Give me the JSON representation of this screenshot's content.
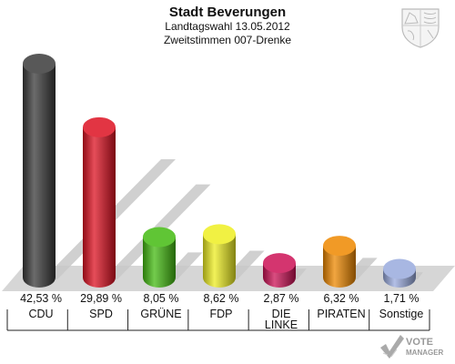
{
  "header": {
    "title": "Stadt Beverungen",
    "subtitle1": "Landtagswahl 13.05.2012",
    "subtitle2": "Zweitstimmen 007-Drenke"
  },
  "branding": {
    "crest_icon": "nrw-coat-of-arms-icon",
    "logo_line1": "VOTE",
    "logo_line2": "MANAGER"
  },
  "chart_data": {
    "type": "bar",
    "title": "Stadt Beverungen",
    "subtitle": "Landtagswahl 13.05.2012 / Zweitstimmen 007-Drenke",
    "categories": [
      "CDU",
      "SPD",
      "GRÜNE",
      "FDP",
      "DIE LINKE",
      "PIRATEN",
      "Sonstige"
    ],
    "category_lines": [
      [
        "CDU"
      ],
      [
        "SPD"
      ],
      [
        "GRÜNE"
      ],
      [
        "FDP"
      ],
      [
        "DIE",
        "LINKE"
      ],
      [
        "PIRATEN"
      ],
      [
        "Sonstige"
      ]
    ],
    "values": [
      42.53,
      29.89,
      8.05,
      8.62,
      2.87,
      6.32,
      1.71
    ],
    "value_labels": [
      "42,53 %",
      "29,89 %",
      "8,05 %",
      "8,62 %",
      "2,87 %",
      "6,32 %",
      "1,71 %"
    ],
    "colors": [
      "#3a3a3a",
      "#dd1122",
      "#44bb11",
      "#eeee22",
      "#cc1155",
      "#ee8800",
      "#99aadd"
    ],
    "ylim": [
      0,
      45
    ],
    "style": "3d-cylinder"
  }
}
